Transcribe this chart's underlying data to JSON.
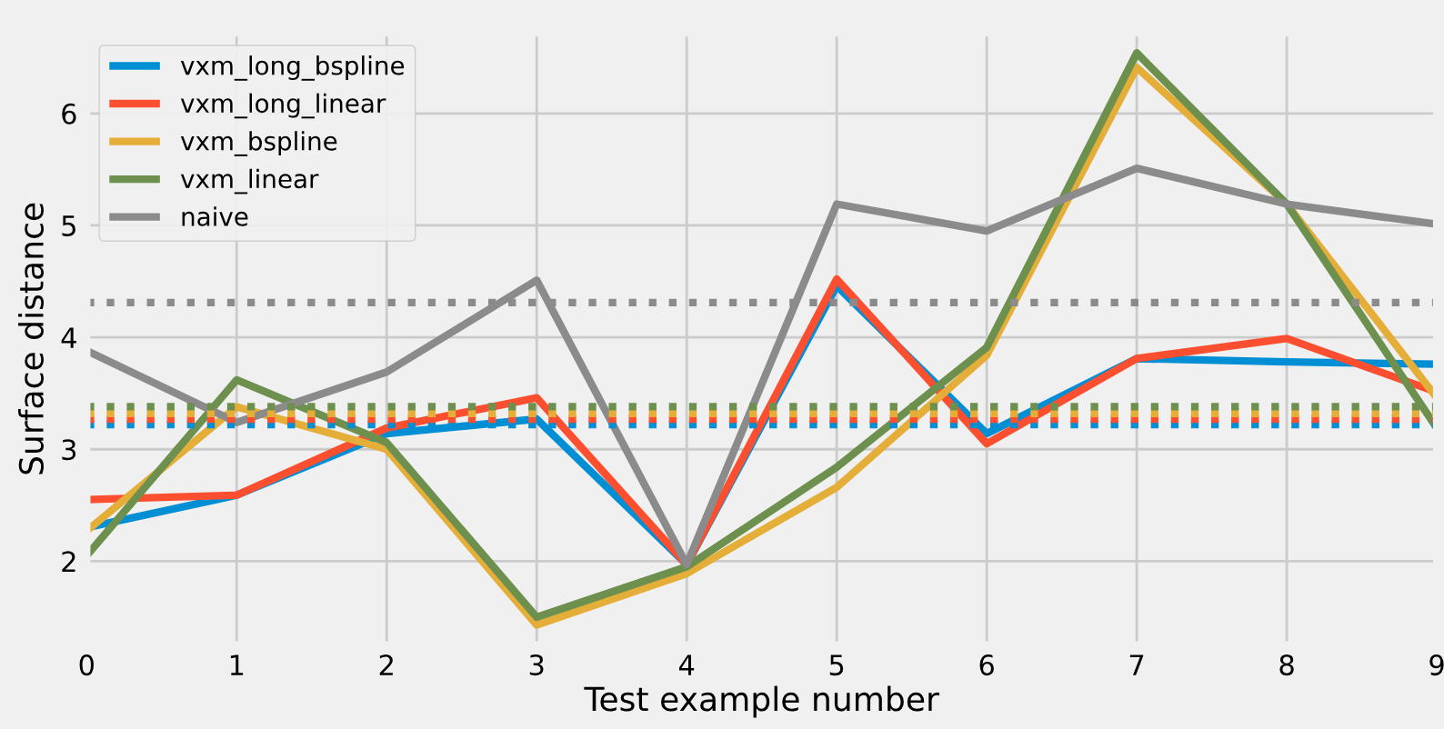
{
  "chart_data": {
    "type": "line",
    "xlabel": "Test example number",
    "ylabel": "Surface distance",
    "x": [
      0,
      1,
      2,
      3,
      4,
      5,
      6,
      7,
      8,
      9
    ],
    "series": [
      {
        "name": "vxm_long_bspline",
        "color": "#008fd5",
        "values": [
          2.3,
          2.59,
          3.14,
          3.27,
          1.97,
          4.46,
          3.14,
          3.81,
          3.78,
          3.76
        ]
      },
      {
        "name": "vxm_long_linear",
        "color": "#fc4f30",
        "values": [
          2.55,
          2.59,
          3.19,
          3.46,
          1.97,
          4.52,
          3.05,
          3.81,
          3.99,
          3.51
        ]
      },
      {
        "name": "vxm_bspline",
        "color": "#e5ae38",
        "values": [
          2.27,
          3.38,
          3.0,
          1.43,
          1.89,
          2.66,
          3.84,
          6.41,
          5.19,
          3.46
        ]
      },
      {
        "name": "vxm_linear",
        "color": "#6d904f",
        "values": [
          2.05,
          3.62,
          3.06,
          1.5,
          1.95,
          2.84,
          3.91,
          6.54,
          5.19,
          3.19
        ]
      },
      {
        "name": "naive",
        "color": "#8b8b8b",
        "values": [
          3.88,
          3.24,
          3.69,
          4.51,
          1.97,
          5.19,
          4.95,
          5.51,
          5.19,
          5.01
        ]
      }
    ],
    "ref_lines": [
      {
        "axis": "y",
        "value": 3.22,
        "color": "#008fd5",
        "line_style": "dotted"
      },
      {
        "axis": "y",
        "value": 3.27,
        "color": "#fc4f30",
        "line_style": "dotted"
      },
      {
        "axis": "y",
        "value": 3.32,
        "color": "#e5ae38",
        "line_style": "dotted"
      },
      {
        "axis": "y",
        "value": 3.38,
        "color": "#6d904f",
        "line_style": "dotted"
      },
      {
        "axis": "y",
        "value": 4.31,
        "color": "#8b8b8b",
        "line_style": "dotted"
      }
    ],
    "xlim": [
      0,
      9
    ],
    "xticks": [
      0,
      1,
      2,
      3,
      4,
      5,
      6,
      7,
      8,
      9
    ],
    "ylim": [
      1.25,
      6.72
    ],
    "yticks": [
      2,
      3,
      4,
      5,
      6
    ],
    "grid": true,
    "legend": "top left",
    "line_style": "solid"
  }
}
